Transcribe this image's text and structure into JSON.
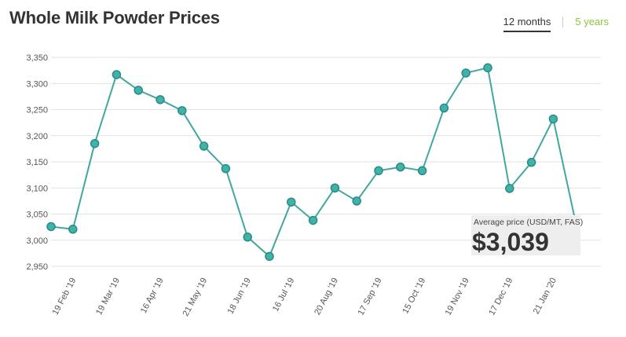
{
  "header": {
    "title": "Whole Milk Powder Prices",
    "tabs": [
      {
        "label": "12 months",
        "active": true
      },
      {
        "label": "5 years",
        "active": false
      }
    ]
  },
  "colors": {
    "line": "#41a79f",
    "point": "#3fb3a9",
    "active_tab": "#333333",
    "inactive_tab": "#8cc63f"
  },
  "callout": {
    "label": "Average price (USD/MT, FAS)",
    "value": "$3,039"
  },
  "chart_data": {
    "type": "line",
    "title": "Whole Milk Powder Prices",
    "xlabel": "",
    "ylabel": "",
    "ylim": [
      2950,
      3350
    ],
    "yticks": [
      2950,
      3000,
      3050,
      3100,
      3150,
      3200,
      3250,
      3300,
      3350
    ],
    "ytick_labels": [
      "2,950",
      "3,000",
      "3,050",
      "3,100",
      "3,150",
      "3,200",
      "3,250",
      "3,300",
      "3,350"
    ],
    "grid": true,
    "legend": "none",
    "x_tick_labels": [
      "19 Feb '19",
      "19 Mar '19",
      "16 Apr '19",
      "21 May '19",
      "18 Jun '19",
      "16 Jul '19",
      "20 Aug '19",
      "17 Sep '19",
      "15 Oct '19",
      "19 Nov '19",
      "17 Dec '19",
      "21 Jan '20"
    ],
    "x_tick_at_point": [
      1,
      3,
      5,
      7,
      9,
      11,
      13,
      15,
      17,
      19,
      21,
      23
    ],
    "series": [
      {
        "values": [
          3026,
          3021,
          3185,
          3317,
          3287,
          3269,
          3248,
          3180,
          3137,
          3006,
          2969,
          3073,
          3038,
          3100,
          3075,
          3133,
          3140,
          3133,
          3253,
          3320,
          3330,
          3099,
          3149,
          3232,
          3039
        ]
      }
    ]
  }
}
